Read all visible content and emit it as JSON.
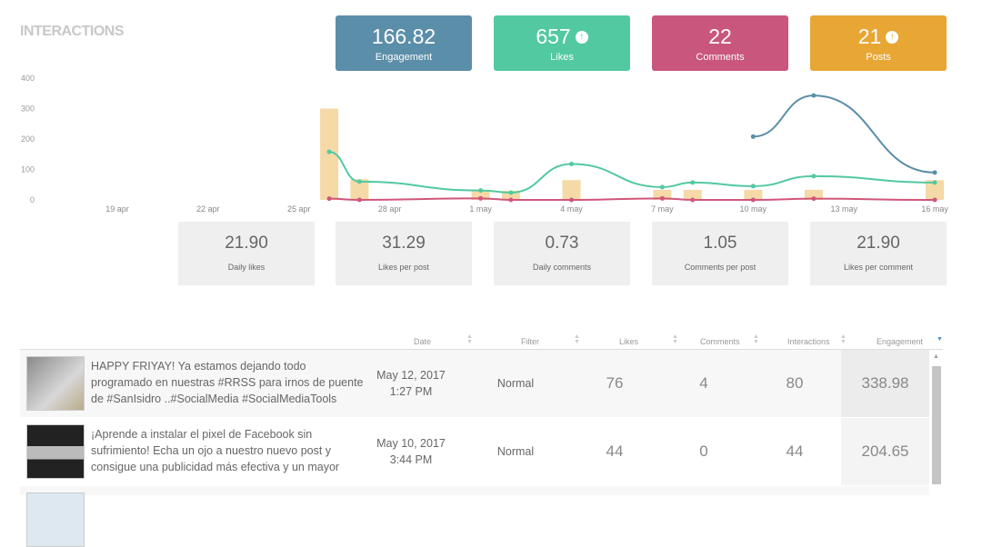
{
  "title": "INTERACTIONS",
  "kpis": [
    {
      "value": "166.82",
      "label": "Engagement",
      "color": "#5b8ea9",
      "up": false
    },
    {
      "value": "657",
      "label": "Likes",
      "color": "#52c9a0",
      "up": true
    },
    {
      "value": "22",
      "label": "Comments",
      "color": "#c9567c",
      "up": false
    },
    {
      "value": "21",
      "label": "Posts",
      "color": "#e8a634",
      "up": true
    }
  ],
  "stats": [
    {
      "value": "21.90",
      "label": "Daily likes"
    },
    {
      "value": "31.29",
      "label": "Likes per post"
    },
    {
      "value": "0.73",
      "label": "Daily comments"
    },
    {
      "value": "1.05",
      "label": "Comments per post"
    },
    {
      "value": "21.90",
      "label": "Likes per comment"
    }
  ],
  "chart_data": {
    "type": "bar+line",
    "x_ticks": [
      "19 apr",
      "22 apr",
      "25 apr",
      "28 apr",
      "1 may",
      "4 may",
      "7 may",
      "10 may",
      "13 may",
      "16 may"
    ],
    "y_ticks": [
      "0",
      "100",
      "200",
      "300",
      "400"
    ],
    "ylim": [
      0,
      400
    ],
    "xlim": [
      "2017-04-16",
      "2017-05-16"
    ],
    "grid": false,
    "bars": {
      "color": "#f5d9a6",
      "points": [
        [
          "2017-04-26",
          300
        ],
        [
          "2017-04-27",
          68
        ],
        [
          "2017-05-01",
          30
        ],
        [
          "2017-05-02",
          30
        ],
        [
          "2017-05-04",
          65
        ],
        [
          "2017-05-07",
          33
        ],
        [
          "2017-05-08",
          33
        ],
        [
          "2017-05-10",
          33
        ],
        [
          "2017-05-12",
          33
        ],
        [
          "2017-05-16",
          65
        ]
      ]
    },
    "series": [
      {
        "color": "#52c9a0",
        "points": [
          [
            "2017-04-26",
            158
          ],
          [
            "2017-04-27",
            60
          ],
          [
            "2017-05-01",
            31
          ],
          [
            "2017-05-02",
            24
          ],
          [
            "2017-05-04",
            118
          ],
          [
            "2017-05-07",
            42
          ],
          [
            "2017-05-08",
            57
          ],
          [
            "2017-05-10",
            45
          ],
          [
            "2017-05-12",
            78
          ],
          [
            "2017-05-16",
            57
          ]
        ]
      },
      {
        "color": "#d0567a",
        "points": [
          [
            "2017-04-26",
            4
          ],
          [
            "2017-04-27",
            0
          ],
          [
            "2017-05-01",
            5
          ],
          [
            "2017-05-02",
            0
          ],
          [
            "2017-05-04",
            0
          ],
          [
            "2017-05-07",
            5
          ],
          [
            "2017-05-08",
            0
          ],
          [
            "2017-05-10",
            0
          ],
          [
            "2017-05-12",
            4
          ],
          [
            "2017-05-16",
            0
          ]
        ]
      },
      {
        "color": "#5b8ea9",
        "points": [
          [
            "2017-05-10",
            208
          ],
          [
            "2017-05-12",
            343
          ],
          [
            "2017-05-16",
            90
          ]
        ]
      }
    ]
  },
  "table": {
    "headers": [
      "Date",
      "Filter",
      "Likes",
      "Comments",
      "Interactions",
      "Engagement"
    ],
    "rows": [
      {
        "text": "HAPPY FRIYAY! Ya estamos dejando todo programado en nuestras #RRSS para irnos de puente de #SanIsidro ..#SocialMedia #SocialMediaTools #CommunityManager",
        "date": "May 12, 2017",
        "time": "1:27 PM",
        "filter": "Normal",
        "likes": "76",
        "comments": "4",
        "interactions": "80",
        "engagement": "338.98"
      },
      {
        "text": "¡Aprende a instalar el pixel de Facebook sin sufrimiento! Echa un ojo a nuestro nuevo post y consigue una publicidad más efectiva y un mayor control de tu público",
        "date": "May 10, 2017",
        "time": "3:44 PM",
        "filter": "Normal",
        "likes": "44",
        "comments": "0",
        "interactions": "44",
        "engagement": "204.65"
      }
    ]
  }
}
